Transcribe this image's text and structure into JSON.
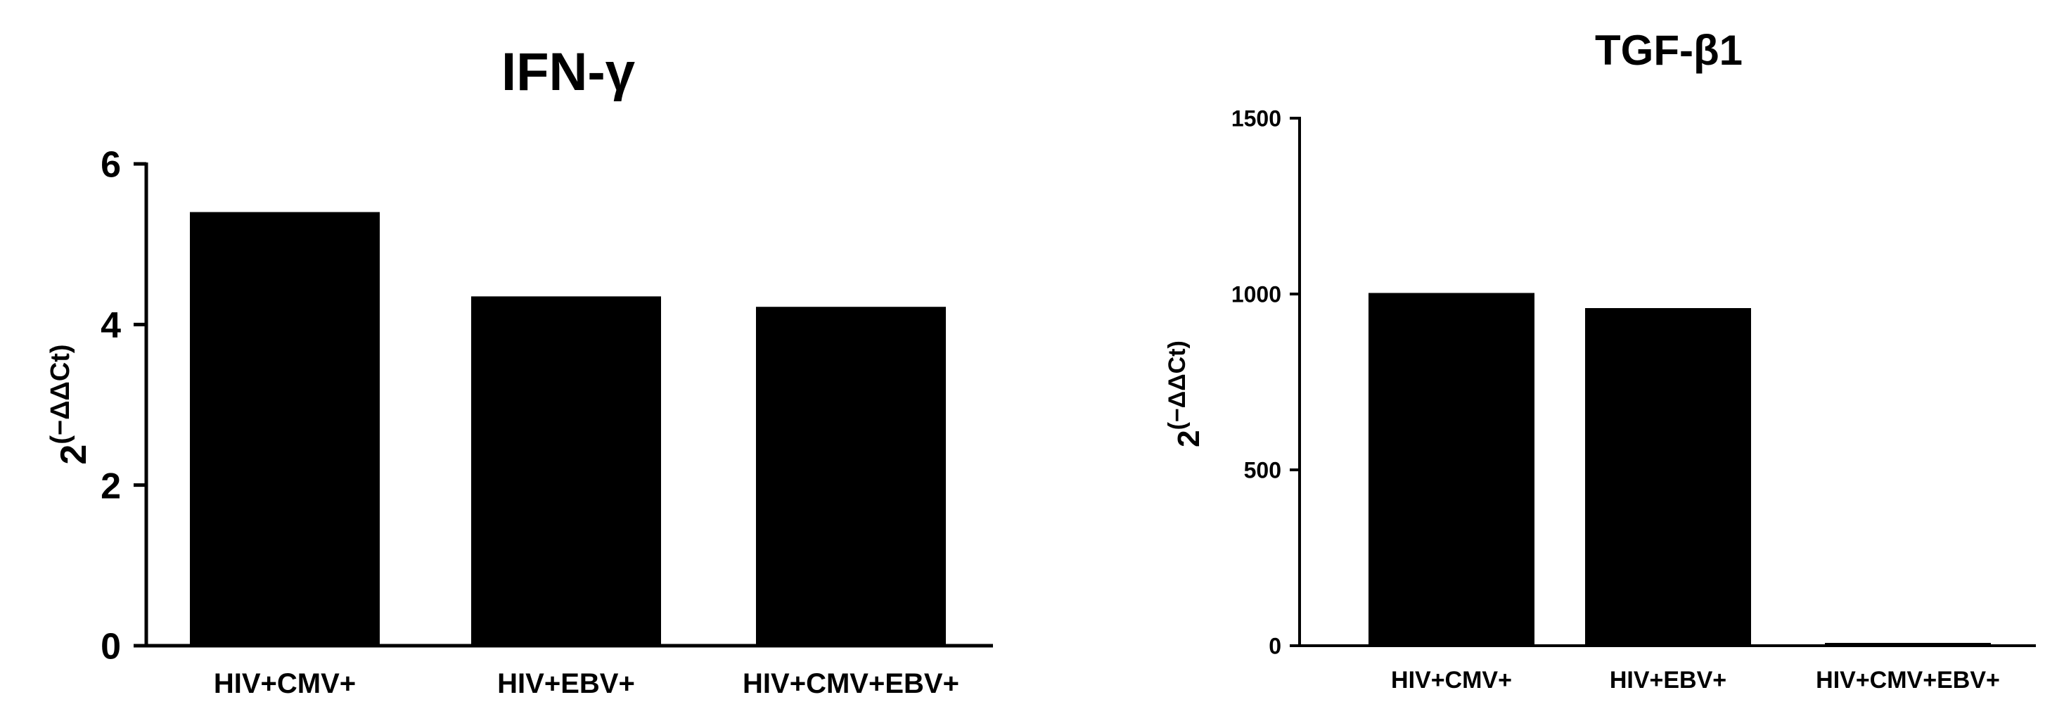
{
  "chart_data": [
    {
      "type": "bar",
      "title": "IFN-γ",
      "ylabel_base": "2",
      "ylabel_exp": "(−ΔΔCt)",
      "categories": [
        "HIV+CMV+",
        "HIV+EBV+",
        "HIV+CMV+EBV+"
      ],
      "values": [
        5.4,
        4.35,
        4.22
      ],
      "ylim": [
        0,
        6
      ],
      "yticks": [
        0,
        2,
        4,
        6
      ],
      "ytick_labels": [
        "0",
        "2",
        "4",
        "6"
      ],
      "grid": false,
      "bar_color": "#000000"
    },
    {
      "type": "bar",
      "title": "TGF-β1",
      "ylabel_base": "2",
      "ylabel_exp": "(−ΔΔCt)",
      "categories": [
        "HIV+CMV+",
        "HIV+EBV+",
        "HIV+CMV+EBV+"
      ],
      "values": [
        1003,
        960,
        8
      ],
      "ylim": [
        0,
        1500
      ],
      "yticks": [
        0,
        500,
        1000,
        1500
      ],
      "ytick_labels": [
        "0",
        "500",
        "1000",
        "1500"
      ],
      "grid": false,
      "bar_color": "#000000"
    }
  ]
}
